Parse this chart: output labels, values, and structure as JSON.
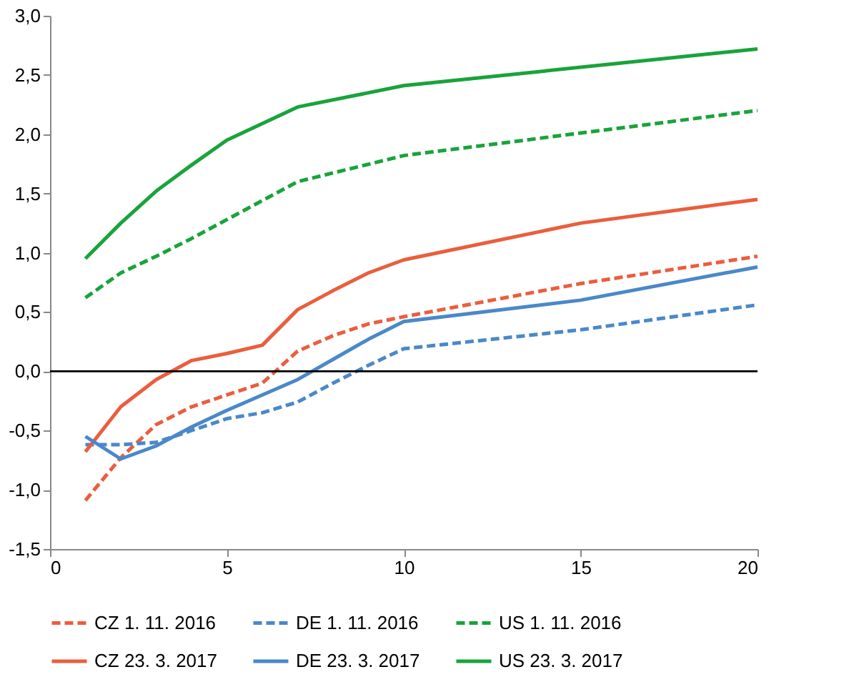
{
  "chart_data": {
    "type": "line",
    "legend": "bottom",
    "grid": false,
    "marker": "none",
    "xlim": [
      0,
      20
    ],
    "xticks": [
      0,
      5,
      10,
      15,
      20
    ],
    "ylim": [
      -1.5,
      3.0
    ],
    "yticks": [
      {
        "value": -1.5,
        "label": "-1,5"
      },
      {
        "value": -1.0,
        "label": "-1,0"
      },
      {
        "value": -0.5,
        "label": "-0,5"
      },
      {
        "value": 0,
        "label": "0,0"
      },
      {
        "value": 0.5,
        "label": "0,5"
      },
      {
        "value": 1.0,
        "label": "1,0"
      },
      {
        "value": 1.5,
        "label": "1,5"
      },
      {
        "value": 2.0,
        "label": "2,0"
      },
      {
        "value": 2.5,
        "label": "2,5"
      },
      {
        "value": 3.0,
        "label": "3,0"
      }
    ],
    "ref_lines": [
      {
        "axis": "y",
        "value": 0,
        "color": "#000000",
        "line_style": "solid"
      }
    ],
    "series": [
      {
        "name": "CZ 1. 11. 2016",
        "color": "#ea5e3d",
        "line_style": "dashed",
        "x": [
          1,
          2,
          3,
          4,
          5,
          6,
          7,
          8,
          9,
          10,
          15,
          20
        ],
        "values": [
          -1.09,
          -0.73,
          -0.45,
          -0.3,
          -0.2,
          -0.1,
          0.17,
          0.3,
          0.4,
          0.46,
          0.74,
          0.97
        ]
      },
      {
        "name": "DE 1. 11. 2016",
        "color": "#4a88c9",
        "line_style": "dashed",
        "x": [
          1,
          2,
          3,
          4,
          5,
          6,
          7,
          8,
          9,
          10,
          15,
          20
        ],
        "values": [
          -0.62,
          -0.62,
          -0.6,
          -0.5,
          -0.4,
          -0.35,
          -0.26,
          -0.1,
          0.05,
          0.19,
          0.35,
          0.56
        ]
      },
      {
        "name": "US 1. 11. 2016",
        "color": "#19a33b",
        "line_style": "dashed",
        "x": [
          1,
          2,
          3,
          4,
          5,
          7,
          10,
          20
        ],
        "values": [
          0.62,
          0.83,
          0.97,
          1.12,
          1.28,
          1.6,
          1.82,
          2.2
        ]
      },
      {
        "name": "CZ 23. 3. 2017",
        "color": "#ea5e3d",
        "line_style": "solid",
        "x": [
          1,
          2,
          3,
          4,
          5,
          6,
          7,
          8,
          9,
          10,
          15,
          20
        ],
        "values": [
          -0.68,
          -0.3,
          -0.07,
          0.09,
          0.15,
          0.22,
          0.52,
          0.68,
          0.83,
          0.94,
          1.25,
          1.45
        ]
      },
      {
        "name": "DE 23. 3. 2017",
        "color": "#4a88c9",
        "line_style": "solid",
        "x": [
          1,
          2,
          3,
          4,
          5,
          6,
          7,
          8,
          9,
          10,
          15,
          20
        ],
        "values": [
          -0.55,
          -0.74,
          -0.63,
          -0.47,
          -0.33,
          -0.2,
          -0.07,
          0.1,
          0.27,
          0.42,
          0.6,
          0.88
        ]
      },
      {
        "name": "US 23. 3. 2017",
        "color": "#19a33b",
        "line_style": "solid",
        "x": [
          1,
          2,
          3,
          4,
          5,
          7,
          10,
          20
        ],
        "values": [
          0.95,
          1.25,
          1.52,
          1.74,
          1.95,
          2.23,
          2.41,
          2.72
        ]
      }
    ]
  }
}
